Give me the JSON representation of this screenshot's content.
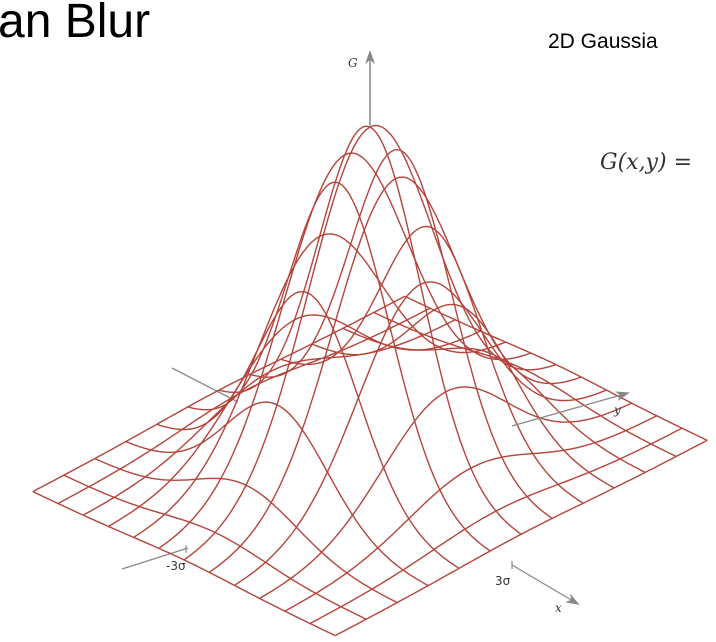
{
  "slide": {
    "title": "an Blur",
    "subtitle": "2D Gaussia",
    "formula": "G(x,y) ="
  },
  "plot": {
    "type": "surface-wireframe",
    "axes": {
      "vertical": "G",
      "y": "y",
      "x": "x"
    },
    "ticks": {
      "neg": "-3σ",
      "pos": "3σ"
    },
    "grid_lines_per_axis": 13,
    "domain_sigma": [
      -3,
      3
    ],
    "colors": {
      "mesh": "#b5443c",
      "axis": "#888888",
      "text": "#333333"
    }
  }
}
